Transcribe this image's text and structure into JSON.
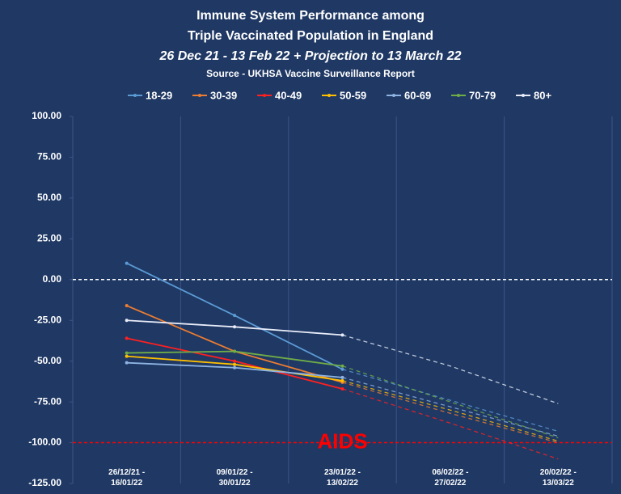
{
  "chart_data": {
    "type": "line",
    "title": "Immune System Performance among",
    "title2": "Triple Vaccinated Population in England",
    "subtitle": "26 Dec 21 - 13 Feb 22 + Projection to 13 March 22",
    "source": "Source - UKHSA Vaccine Surveillance Report",
    "categories": [
      "26/12/21 - 16/01/22",
      "09/01/22 - 30/01/22",
      "23/01/22 - 13/02/22",
      "06/02/22 - 27/02/22",
      "20/02/22 - 13/03/22"
    ],
    "series": [
      {
        "name": "18-29",
        "color": "#5b9bd5",
        "values": [
          10,
          -22,
          -55,
          null,
          null
        ],
        "projection": [
          null,
          null,
          -55,
          -74,
          -93
        ]
      },
      {
        "name": "30-39",
        "color": "#ed7d31",
        "values": [
          -16,
          -44,
          -63,
          null,
          null
        ],
        "projection": [
          null,
          null,
          -63,
          -82,
          -100
        ]
      },
      {
        "name": "40-49",
        "color": "#ff2020",
        "values": [
          -36,
          -50,
          -67,
          null,
          null
        ],
        "projection": [
          null,
          null,
          -67,
          -88,
          -110
        ]
      },
      {
        "name": "50-59",
        "color": "#ffc000",
        "values": [
          -47,
          -52,
          -62,
          null,
          null
        ],
        "projection": [
          null,
          null,
          -62,
          -80,
          -99
        ]
      },
      {
        "name": "60-69",
        "color": "#8fb4e3",
        "values": [
          -51,
          -54,
          -60,
          null,
          null
        ],
        "projection": [
          null,
          null,
          -60,
          -78,
          -96
        ]
      },
      {
        "name": "70-79",
        "color": "#70ad47",
        "values": [
          -45,
          -44,
          -53,
          null,
          null
        ],
        "projection": [
          null,
          null,
          -53,
          -75,
          -97
        ]
      },
      {
        "name": "80+",
        "color": "#e8ecf8",
        "values": [
          -25,
          -29,
          -34,
          null,
          null
        ],
        "projection": [
          null,
          null,
          -34,
          -53,
          -76
        ]
      }
    ],
    "ylim": [
      -125,
      100
    ],
    "yticks": [
      {
        "value": 100,
        "label": "100.00"
      },
      {
        "value": 75,
        "label": "75.00"
      },
      {
        "value": 50,
        "label": "50.00"
      },
      {
        "value": 25,
        "label": "25.00"
      },
      {
        "value": 0,
        "label": "0.00"
      },
      {
        "value": -25,
        "label": "-25.00"
      },
      {
        "value": -50,
        "label": "-50.00"
      },
      {
        "value": -75,
        "label": "-75.00"
      },
      {
        "value": -100,
        "label": "-100.00"
      },
      {
        "value": -125,
        "label": "-125.00"
      }
    ],
    "reference_lines": [
      {
        "value": 0,
        "color": "#ffffff"
      },
      {
        "value": -100,
        "color": "#ff0000",
        "label": "AIDS"
      }
    ]
  }
}
